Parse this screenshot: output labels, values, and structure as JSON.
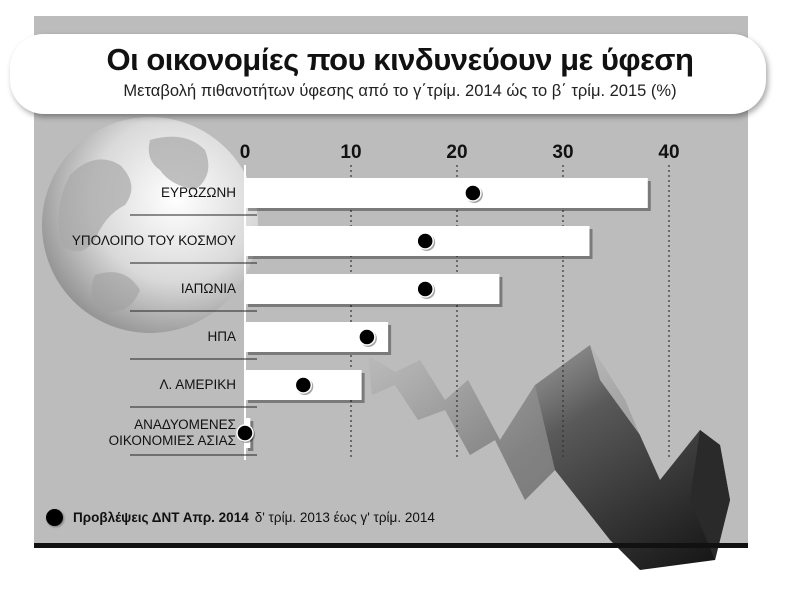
{
  "header": {
    "title": "Οι οικονομίες που κινδυνεύουν με ύφεση",
    "subtitle": "Μεταβολή πιθανοτήτων ύφεσης από το γ΄τρίμ. 2014 ώς το β΄ τρίμ. 2015 (%)"
  },
  "legend": {
    "bold": "Προβλέψεις ΔΝΤ Απρ. 2014",
    "rest": "δ' τρίμ. 2013 έως γ' τρίμ. 2014"
  },
  "chart_data": {
    "type": "bar",
    "orientation": "horizontal",
    "x_ticks": [
      0,
      10,
      20,
      30,
      40
    ],
    "xlim": [
      0,
      40
    ],
    "categories": [
      "ΕΥΡΩΖΩΝΗ",
      "ΥΠΟΛΟΙΠΟ ΤΟΥ ΚΟΣΜΟΥ",
      "ΙΑΠΩΝΙΑ",
      "ΗΠΑ",
      "Λ. ΑΜΕΡΙΚΗ",
      "ΑΝΑΔΥΟΜΕΝΕΣ ΟΙΚΟΝΟΜΙΕΣ ΑΣΙΑΣ"
    ],
    "category_lines": [
      [
        "ΕΥΡΩΖΩΝΗ"
      ],
      [
        "ΥΠΟΛΟΙΠΟ ΤΟΥ ΚΟΣΜΟΥ"
      ],
      [
        "ΙΑΠΩΝΙΑ"
      ],
      [
        "ΗΠΑ"
      ],
      [
        "Λ. ΑΜΕΡΙΚΗ"
      ],
      [
        "ΑΝΑΔΥΟΜΕΝΕΣ",
        "ΟΙΚΟΝΟΜΙΕΣ ΑΣΙΑΣ"
      ]
    ],
    "values": [
      38,
      32.5,
      24,
      13.5,
      11,
      0.5
    ],
    "forecasts": [
      21.5,
      17,
      17,
      11.5,
      5.5,
      0
    ],
    "grid": true,
    "colors": {
      "bar": "#ffffff",
      "dot": "#000000",
      "panel": "#bcbcbc"
    }
  }
}
